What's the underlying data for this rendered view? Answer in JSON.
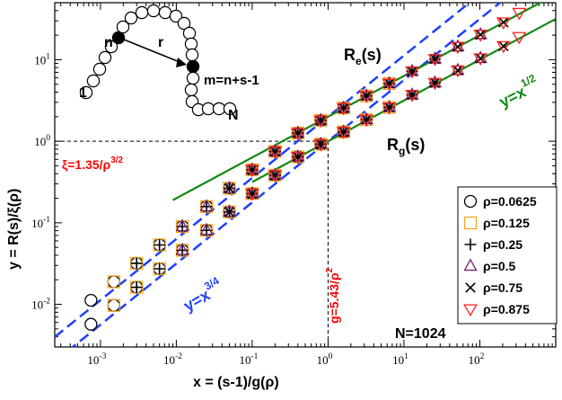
{
  "chart_data": {
    "type": "scatter",
    "xlabel": "x = (s-1)/g(ρ)",
    "ylabel": "y = R(s)/ξ(ρ)",
    "xscale": "log",
    "yscale": "log",
    "xlim": [
      0.00025,
      1000
    ],
    "ylim": [
      0.003,
      50
    ],
    "x_ticks": [
      {
        "value": 0.001,
        "label": "10",
        "exp": "-3"
      },
      {
        "value": 0.01,
        "label": "10",
        "exp": "-2"
      },
      {
        "value": 0.1,
        "label": "10",
        "exp": "-1"
      },
      {
        "value": 1,
        "label": "10",
        "exp": "0"
      },
      {
        "value": 10,
        "label": "10",
        "exp": "1"
      },
      {
        "value": 100,
        "label": "10",
        "exp": "2"
      }
    ],
    "y_ticks": [
      {
        "value": 0.01,
        "label": "10",
        "exp": "-2"
      },
      {
        "value": 0.1,
        "label": "10",
        "exp": "-1"
      },
      {
        "value": 1,
        "label": "10",
        "exp": "0"
      },
      {
        "value": 10,
        "label": "10",
        "exp": "1"
      }
    ],
    "grid": false,
    "legend_position": "bottom-right",
    "series": [
      {
        "name": "ρ=0.0625",
        "marker": "circle",
        "color": "#000000",
        "Re": {
          "x": [
            0.00075,
            0.0015,
            0.003,
            0.006,
            0.012,
            0.025,
            0.05,
            0.1,
            0.2,
            0.4,
            0.8,
            1.6
          ],
          "y": [
            0.0112,
            0.0189,
            0.0318,
            0.0535,
            0.09,
            0.158,
            0.265,
            0.446,
            0.75,
            1.26,
            1.8,
            2.55
          ]
        },
        "Rg": {
          "x": [
            0.00075,
            0.0015,
            0.003,
            0.006,
            0.012,
            0.025,
            0.05,
            0.1,
            0.2,
            0.4,
            0.8,
            1.6
          ],
          "y": [
            0.0057,
            0.0097,
            0.0162,
            0.0273,
            0.046,
            0.0808,
            0.136,
            0.228,
            0.383,
            0.644,
            0.92,
            1.3
          ]
        }
      },
      {
        "name": "ρ=0.125",
        "marker": "square",
        "color": "#f5a623",
        "Re": {
          "x": [
            0.0015,
            0.003,
            0.006,
            0.012,
            0.025,
            0.05,
            0.1,
            0.2,
            0.4,
            0.8,
            1.6,
            3.2,
            6.4
          ],
          "y": [
            0.0189,
            0.0318,
            0.0535,
            0.09,
            0.158,
            0.265,
            0.446,
            0.75,
            1.26,
            1.8,
            2.55,
            3.6,
            5.1
          ]
        },
        "Rg": {
          "x": [
            0.0015,
            0.003,
            0.006,
            0.012,
            0.025,
            0.05,
            0.1,
            0.2,
            0.4,
            0.8,
            1.6,
            3.2,
            6.4
          ],
          "y": [
            0.0097,
            0.0162,
            0.0273,
            0.046,
            0.0808,
            0.136,
            0.228,
            0.383,
            0.644,
            0.92,
            1.3,
            1.84,
            2.6
          ]
        }
      },
      {
        "name": "ρ=0.25",
        "marker": "plus",
        "color": "#000000",
        "Re": {
          "x": [
            0.003,
            0.006,
            0.012,
            0.025,
            0.05,
            0.1,
            0.2,
            0.4,
            0.8,
            1.6,
            3.2,
            6.4,
            12.8,
            25.6
          ],
          "y": [
            0.0318,
            0.0535,
            0.09,
            0.158,
            0.265,
            0.446,
            0.75,
            1.26,
            1.8,
            2.55,
            3.6,
            5.1,
            7.2,
            10.2
          ]
        },
        "Rg": {
          "x": [
            0.003,
            0.006,
            0.012,
            0.025,
            0.05,
            0.1,
            0.2,
            0.4,
            0.8,
            1.6,
            3.2,
            6.4,
            12.8,
            25.6
          ],
          "y": [
            0.0162,
            0.0273,
            0.046,
            0.0808,
            0.136,
            0.228,
            0.383,
            0.644,
            0.92,
            1.3,
            1.84,
            2.6,
            3.7,
            5.2
          ]
        }
      },
      {
        "name": "ρ=0.5",
        "marker": "triangle-up",
        "color": "#7a1f6b",
        "Re": {
          "x": [
            0.012,
            0.025,
            0.05,
            0.1,
            0.2,
            0.4,
            0.8,
            1.6,
            3.2,
            6.4,
            12.8,
            25.6,
            51.2,
            102
          ],
          "y": [
            0.09,
            0.158,
            0.265,
            0.446,
            0.75,
            1.26,
            1.8,
            2.55,
            3.6,
            5.1,
            7.2,
            10.2,
            14.4,
            20.3
          ]
        },
        "Rg": {
          "x": [
            0.012,
            0.025,
            0.05,
            0.1,
            0.2,
            0.4,
            0.8,
            1.6,
            3.2,
            6.4,
            12.8,
            25.6,
            51.2,
            102
          ],
          "y": [
            0.046,
            0.0808,
            0.136,
            0.228,
            0.383,
            0.644,
            0.92,
            1.3,
            1.84,
            2.6,
            3.7,
            5.2,
            7.4,
            10.4
          ]
        }
      },
      {
        "name": "ρ=0.75",
        "marker": "x",
        "color": "#000000",
        "Re": {
          "x": [
            0.05,
            0.1,
            0.2,
            0.4,
            0.8,
            1.6,
            3.2,
            6.4,
            12.8,
            25.6,
            51.2,
            102,
            205
          ],
          "y": [
            0.265,
            0.446,
            0.75,
            1.26,
            1.8,
            2.55,
            3.6,
            5.1,
            7.2,
            10.2,
            14.4,
            20.3,
            28.7
          ]
        },
        "Rg": {
          "x": [
            0.05,
            0.1,
            0.2,
            0.4,
            0.8,
            1.6,
            3.2,
            6.4,
            12.8,
            25.6,
            51.2,
            102,
            205
          ],
          "y": [
            0.136,
            0.228,
            0.383,
            0.644,
            0.92,
            1.3,
            1.84,
            2.6,
            3.7,
            5.2,
            7.4,
            10.4,
            14.7
          ]
        }
      },
      {
        "name": "ρ=0.875",
        "marker": "triangle-down",
        "color": "#ff2020",
        "Re": {
          "x": [
            0.1,
            0.2,
            0.4,
            0.8,
            1.6,
            3.2,
            6.4,
            12.8,
            25.6,
            51.2,
            102,
            205,
            330
          ],
          "y": [
            0.446,
            0.75,
            1.26,
            1.8,
            2.55,
            3.6,
            5.1,
            7.2,
            10.2,
            14.4,
            20.3,
            28.7,
            37.5
          ]
        },
        "Rg": {
          "x": [
            0.1,
            0.2,
            0.4,
            0.8,
            1.6,
            3.2,
            6.4,
            12.8,
            25.6,
            51.2,
            102,
            205,
            330
          ],
          "y": [
            0.228,
            0.383,
            0.644,
            0.92,
            1.3,
            1.84,
            2.6,
            3.7,
            5.2,
            7.4,
            10.4,
            14.7,
            19.0
          ]
        }
      }
    ],
    "fit_lines": [
      {
        "label": "y=x",
        "exp": "3/4",
        "color": "#1f3fff",
        "style": "dashed",
        "prefactor": 2.0,
        "power": 0.75
      },
      {
        "label": "y=x",
        "exp": "3/4",
        "color": "#1f3fff",
        "style": "dashed",
        "prefactor": 1.0,
        "power": 0.75
      },
      {
        "label": "y=x",
        "exp": "1/2",
        "color": "#118811",
        "style": "solid",
        "prefactor": 2.0,
        "power": 0.5
      },
      {
        "label": "y=x",
        "exp": "1/2",
        "color": "#118811",
        "style": "solid",
        "prefactor": 1.0,
        "power": 0.5
      }
    ],
    "reference_lines": {
      "x": 1,
      "y": 1,
      "color": "#000000",
      "style": "dashed"
    },
    "annotations": {
      "re": {
        "base": "R",
        "sub": "e",
        "tail": "(s)"
      },
      "rg": {
        "base": "R",
        "sub": "g",
        "tail": "(s)"
      },
      "xi": {
        "text": "ξ=1.35/ρ",
        "exp": "3/2",
        "color": "#ff0000"
      },
      "g": {
        "text": "g=5.43/ρ",
        "exp": "2",
        "color": "#ff0000"
      },
      "y34": {
        "text": "y=x",
        "exp": "3/4",
        "color": "#1f3fff"
      },
      "y12": {
        "text": "y=x",
        "exp": "1/2",
        "color": "#118811"
      },
      "chain_length": "N=1024"
    },
    "inset_labels": {
      "n": "n",
      "r": "r",
      "m": "m=n+s-1",
      "one": "1",
      "N": "N"
    }
  }
}
